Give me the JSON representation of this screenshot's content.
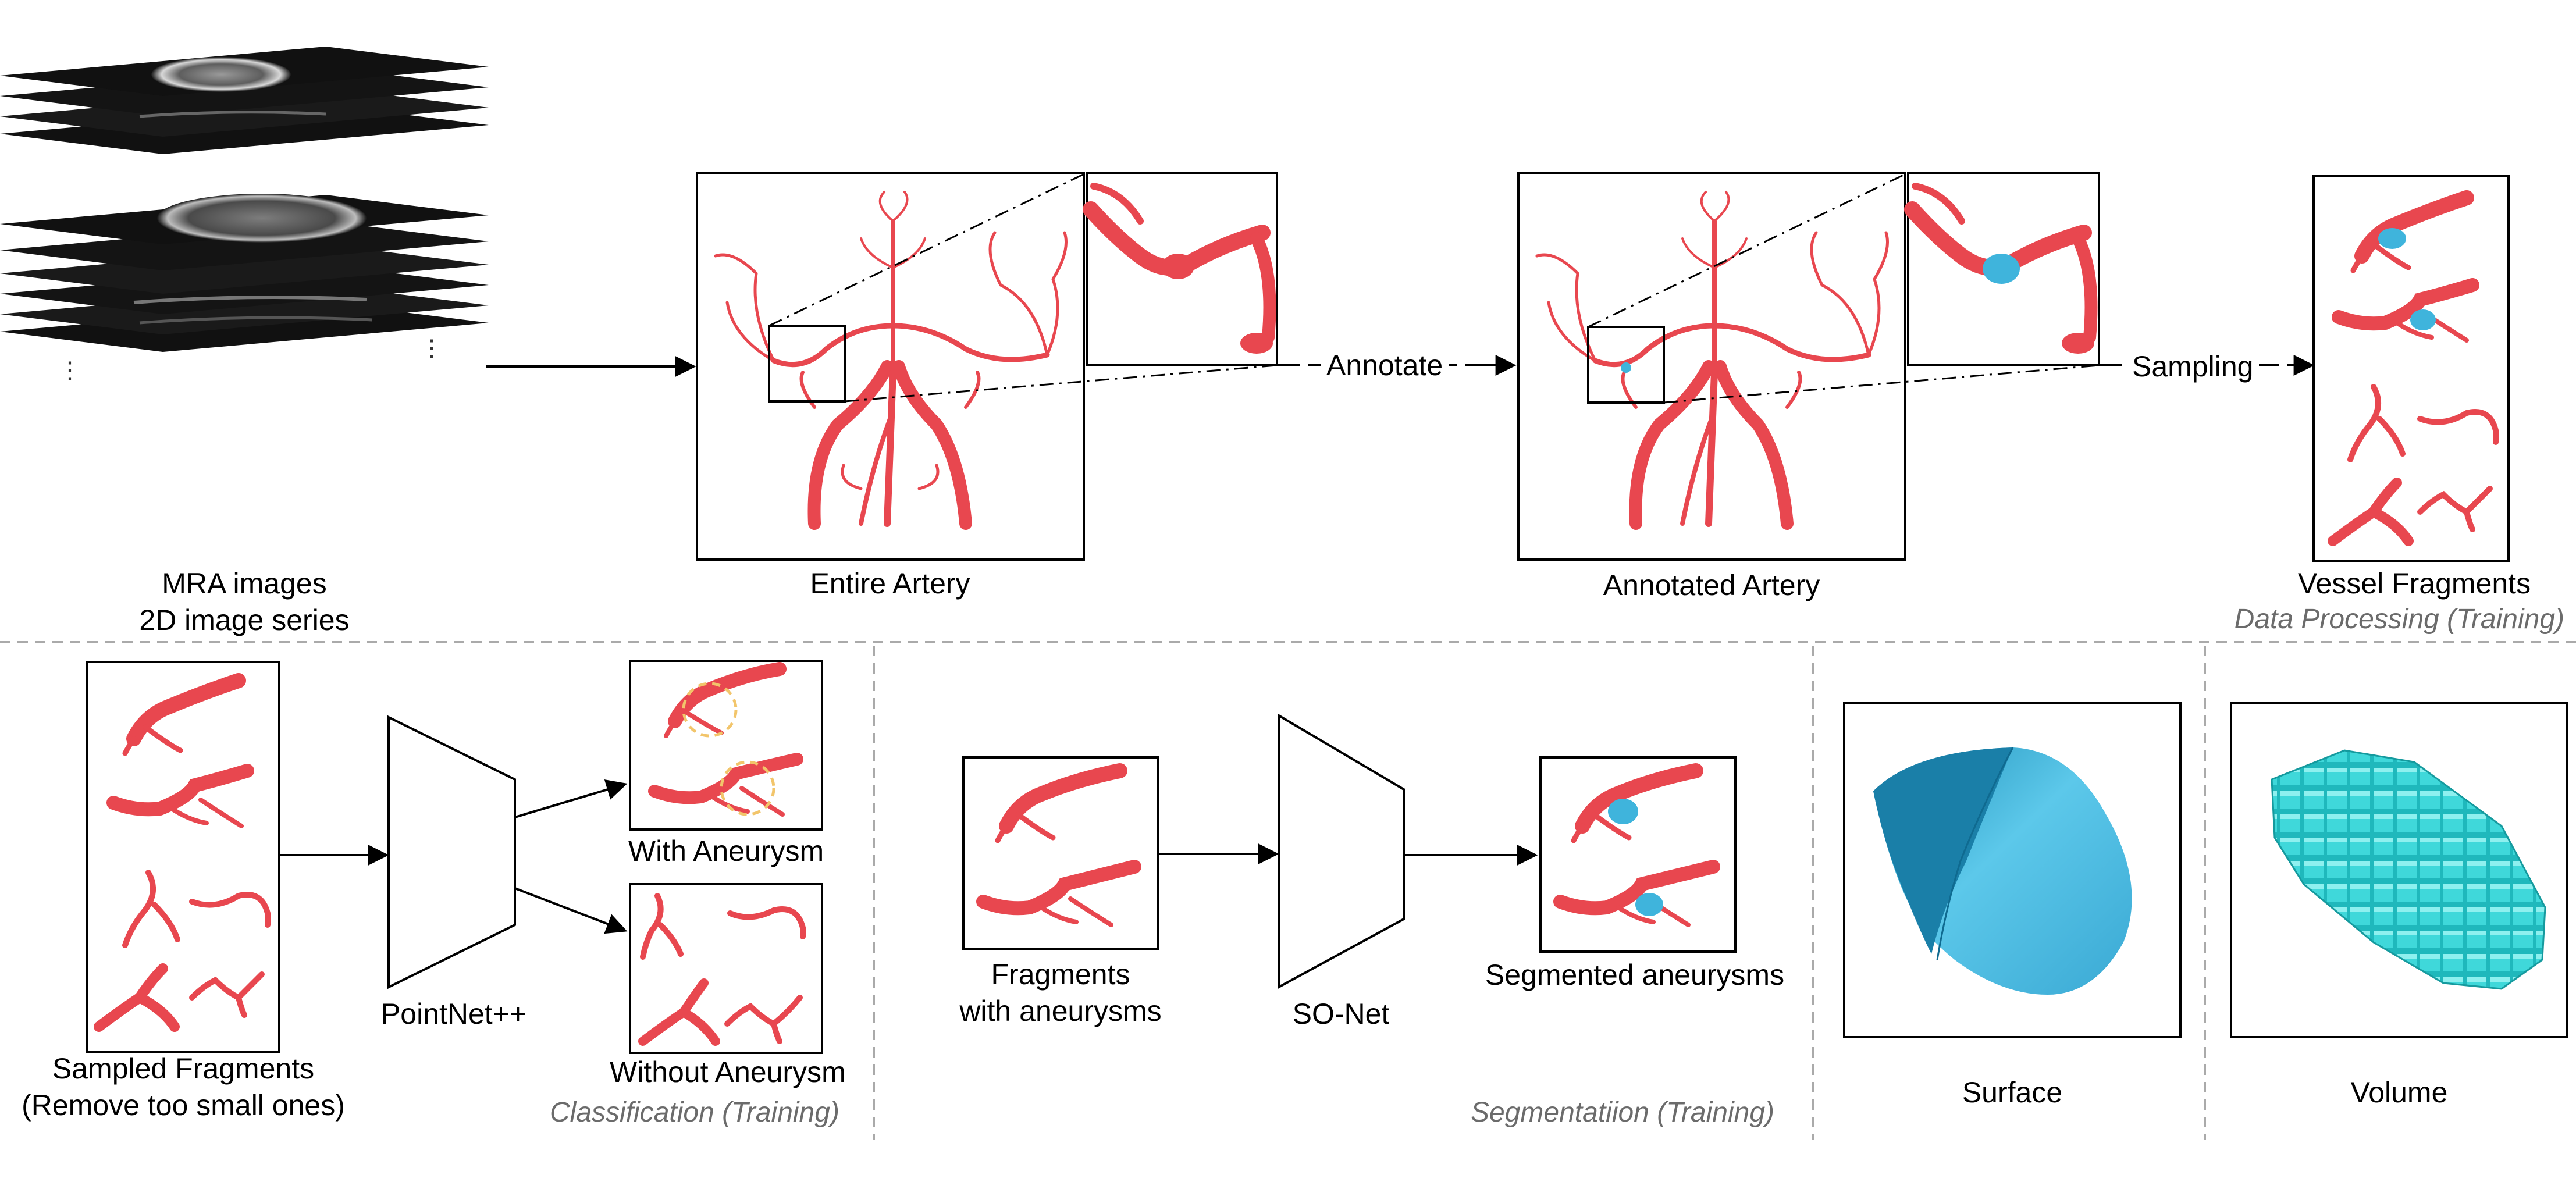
{
  "labels": {
    "mra_line1": "MRA images",
    "mra_line2": "2D image series",
    "entire_artery": "Entire Artery",
    "annotated_artery": "Annotated Artery",
    "vessel_fragments": "Vessel Fragments",
    "annotate": "Annotate",
    "sampling": "Sampling",
    "sampled_line1": "Sampled Fragments",
    "sampled_line2": "(Remove too small ones)",
    "pointnet": "PointNet++",
    "with_aneurysm": "With Aneurysm",
    "without_aneurysm": "Without Aneurysm",
    "fragments_line1": "Fragments",
    "fragments_line2": "with aneurysms",
    "sonet": "SO-Net",
    "segmented": "Segmented aneurysms",
    "surface": "Surface",
    "volume": "Volume"
  },
  "sections": {
    "data_processing": "Data Processing (Training)",
    "classification": "Classification (Training)",
    "segmentation": "Segmentatiion (Training)"
  },
  "colors": {
    "vessel": "#e8474f",
    "aneurysm": "#3fb4dc",
    "surface": "#5cc3e6",
    "voxel": "#27c4c8",
    "dashed_highlight": "#f2c56b",
    "divider": "#aaaaaa",
    "mri_slice": "#111111"
  }
}
